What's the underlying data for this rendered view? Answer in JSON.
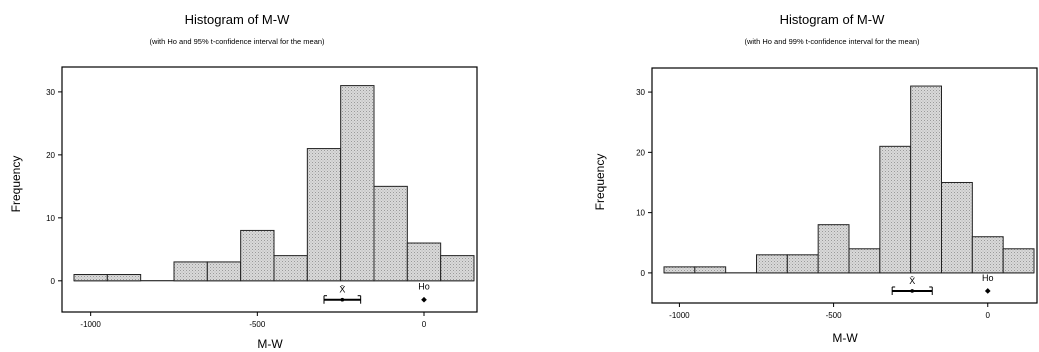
{
  "chart_data": [
    {
      "type": "bar",
      "title": "Histogram of M-W",
      "subtitle": "(with Ho and 95% t-confidence interval for the mean)",
      "xlabel": "M-W",
      "ylabel": "Frequency",
      "bin_width": 100,
      "bins": [
        {
          "x0": -1050,
          "x1": -950,
          "count": 1
        },
        {
          "x0": -950,
          "x1": -850,
          "count": 1
        },
        {
          "x0": -850,
          "x1": -750,
          "count": 0
        },
        {
          "x0": -750,
          "x1": -650,
          "count": 3
        },
        {
          "x0": -650,
          "x1": -550,
          "count": 3
        },
        {
          "x0": -550,
          "x1": -450,
          "count": 8
        },
        {
          "x0": -450,
          "x1": -350,
          "count": 4
        },
        {
          "x0": -350,
          "x1": -250,
          "count": 21
        },
        {
          "x0": -250,
          "x1": -150,
          "count": 31
        },
        {
          "x0": -150,
          "x1": -50,
          "count": 15
        },
        {
          "x0": -50,
          "x1": 50,
          "count": 6
        },
        {
          "x0": 50,
          "x1": 150,
          "count": 4
        }
      ],
      "xlim": [
        -1050,
        150
      ],
      "ylim": [
        -4,
        33
      ],
      "xticks": [
        -1000,
        -500,
        0
      ],
      "xtick_labels": [
        "-1000",
        "-500",
        "0"
      ],
      "yticks": [
        0,
        10,
        20,
        30
      ],
      "ytick_labels": [
        "0",
        "10",
        "20",
        "30"
      ],
      "mean_label": "X̄",
      "mean": -245,
      "ci": [
        -300,
        -190
      ],
      "ho_label": "Ho",
      "ho": 0,
      "grid": false,
      "colors": {
        "bar_fill": "#d4d4d4",
        "bar_edge": "#222222"
      }
    },
    {
      "type": "bar",
      "title": "Histogram of M-W",
      "subtitle": "(with Ho and 99% t-confidence interval for the mean)",
      "xlabel": "M-W",
      "ylabel": "Frequency",
      "bin_width": 100,
      "bins": [
        {
          "x0": -1050,
          "x1": -950,
          "count": 1
        },
        {
          "x0": -950,
          "x1": -850,
          "count": 1
        },
        {
          "x0": -850,
          "x1": -750,
          "count": 0
        },
        {
          "x0": -750,
          "x1": -650,
          "count": 3
        },
        {
          "x0": -650,
          "x1": -550,
          "count": 3
        },
        {
          "x0": -550,
          "x1": -450,
          "count": 8
        },
        {
          "x0": -450,
          "x1": -350,
          "count": 4
        },
        {
          "x0": -350,
          "x1": -250,
          "count": 21
        },
        {
          "x0": -250,
          "x1": -150,
          "count": 31
        },
        {
          "x0": -150,
          "x1": -50,
          "count": 15
        },
        {
          "x0": -50,
          "x1": 50,
          "count": 6
        },
        {
          "x0": 50,
          "x1": 150,
          "count": 4
        }
      ],
      "xlim": [
        -1050,
        150
      ],
      "ylim": [
        -4,
        33
      ],
      "xticks": [
        -1000,
        -500,
        0
      ],
      "xtick_labels": [
        "-1000",
        "-500",
        "0"
      ],
      "yticks": [
        0,
        10,
        20,
        30
      ],
      "ytick_labels": [
        "0",
        "10",
        "20",
        "30"
      ],
      "mean_label": "X̄",
      "mean": -245,
      "ci": [
        -310,
        -180
      ],
      "ho_label": "Ho",
      "ho": 0,
      "grid": false,
      "colors": {
        "bar_fill": "#d4d4d4",
        "bar_edge": "#222222"
      }
    }
  ]
}
